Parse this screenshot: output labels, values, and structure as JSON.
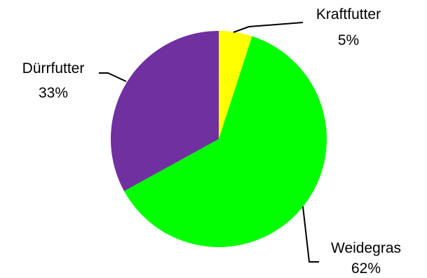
{
  "chart_data": {
    "type": "pie",
    "title": "",
    "start_angle_deg": 0,
    "direction": "clockwise",
    "slices": [
      {
        "label": "Kraftfutter",
        "value": 5,
        "value_text": "5%",
        "color": "#FFFF00"
      },
      {
        "label": "Weidegras",
        "value": 62,
        "value_text": "62%",
        "color": "#00FF00"
      },
      {
        "label": "Dürrfutter",
        "value": 33,
        "value_text": "33%",
        "color": "#7030A0"
      }
    ]
  }
}
